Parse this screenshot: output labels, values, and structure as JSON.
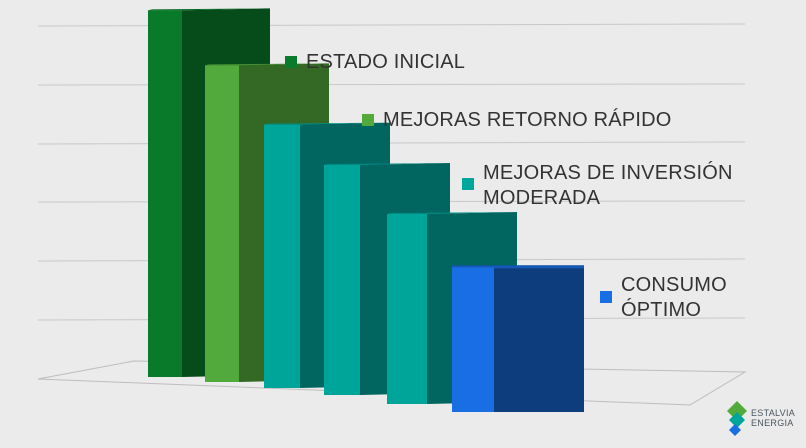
{
  "chart_data": {
    "type": "bar",
    "style": "3d",
    "title": "",
    "xlabel": "",
    "ylabel": "",
    "ylim": [
      0,
      6
    ],
    "grid": true,
    "axis_labels_shown": false,
    "categories": [
      "ESTADO INICIAL",
      "MEJORAS RETORNO RÁPIDO",
      "MEJORAS DE INVERSIÓN MODERADA",
      "MEJORAS DE INVERSIÓN MODERADA",
      "MEJORAS DE INVERSIÓN MODERADA",
      "CONSUMO ÓPTIMO"
    ],
    "values": [
      5.5,
      4.75,
      3.95,
      3.45,
      2.85,
      2.2
    ],
    "bar_colors": [
      "#087a2a",
      "#52aa3c",
      "#00a59a",
      "#00a59a",
      "#00a59a",
      "#1a6ee4"
    ],
    "legend_placement": "right"
  },
  "legend": [
    {
      "label": "ESTADO INICIAL",
      "color": "#0a7a2c"
    },
    {
      "label": "MEJORAS RETORNO RÁPIDO",
      "color": "#52aa3c"
    },
    {
      "label": "MEJORAS DE INVERSIÓN\nMODERADA",
      "color": "#00a89c"
    },
    {
      "label": "CONSUMO\nÓPTIMO",
      "color": "#1a6ee4"
    }
  ],
  "logo": {
    "line1": "ESTALVIA",
    "line2": "ENERGIA"
  }
}
